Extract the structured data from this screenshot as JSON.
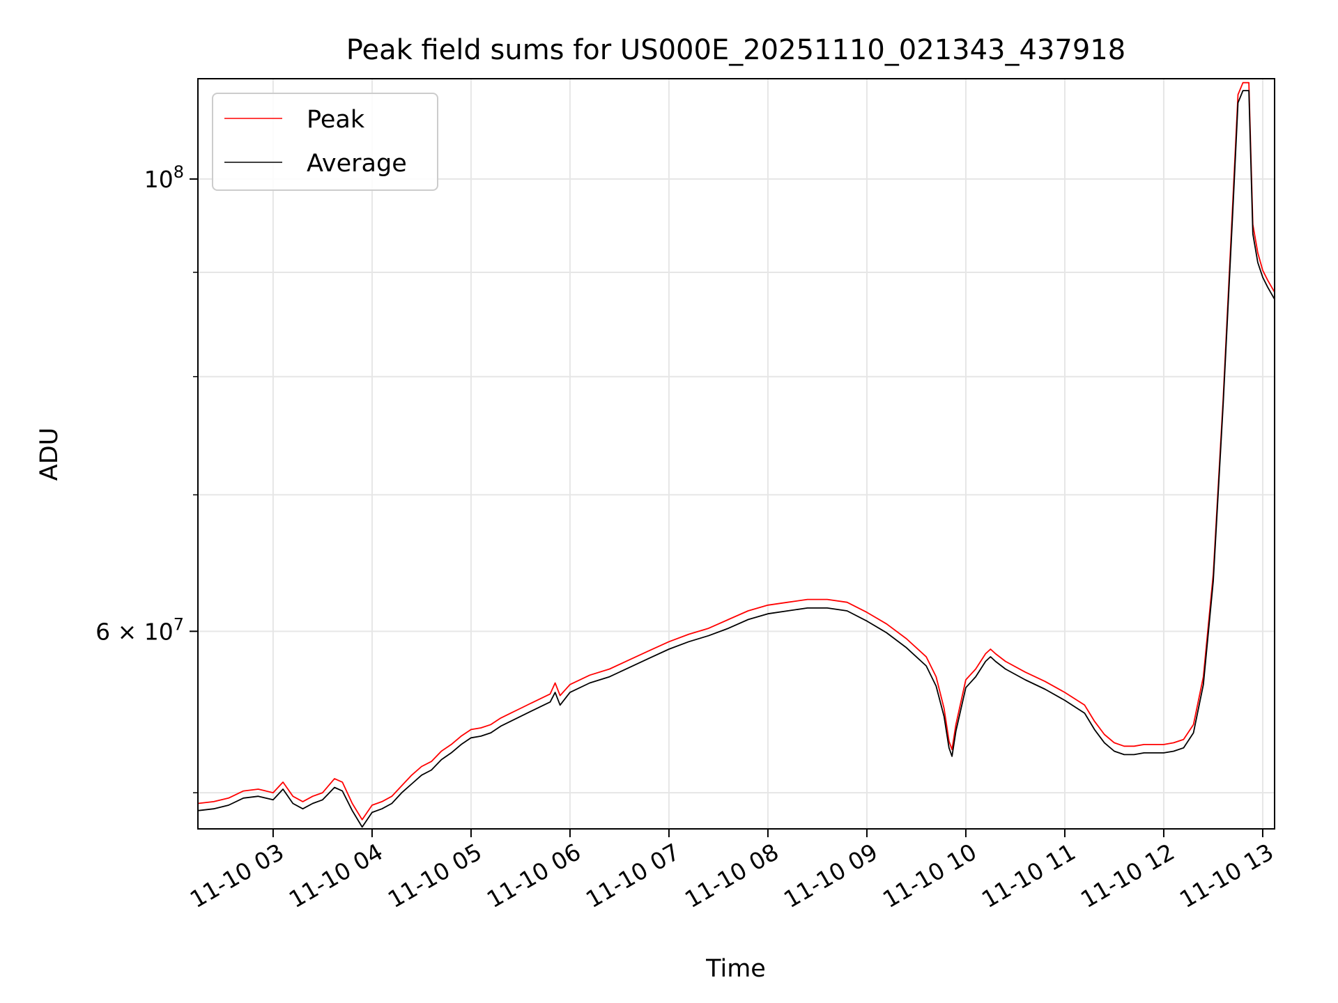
{
  "chart_data": {
    "type": "line",
    "title": "Peak field sums for US000E_20251110_021343_437918",
    "xlabel": "Time",
    "ylabel": "ADU",
    "yscale": "log",
    "xlim": [
      2.24,
      13.12
    ],
    "ylim": [
      48000000,
      112000000
    ],
    "grid": true,
    "legend_position": "top-left",
    "x_ticks": [
      3,
      4,
      5,
      6,
      7,
      8,
      9,
      10,
      11,
      12,
      13
    ],
    "x_tick_labels": [
      "11-10 03",
      "11-10 04",
      "11-10 05",
      "11-10 06",
      "11-10 07",
      "11-10 08",
      "11-10 09",
      "11-10 10",
      "11-10 11",
      "11-10 12",
      "11-10 13"
    ],
    "y_major_ticks": [
      {
        "value": 100000000,
        "base": "10",
        "exp": "8",
        "prefix": ""
      },
      {
        "value": 60000000,
        "base": "10",
        "exp": "7",
        "prefix": "6 × "
      }
    ],
    "y_minor_ticks": [
      50000000,
      70000000,
      80000000,
      90000000
    ],
    "series": [
      {
        "name": "Peak",
        "color": "#ff0000",
        "x": [
          2.24,
          2.4,
          2.55,
          2.7,
          2.85,
          3.0,
          3.1,
          3.2,
          3.3,
          3.4,
          3.5,
          3.62,
          3.7,
          3.8,
          3.9,
          4.0,
          4.1,
          4.2,
          4.3,
          4.4,
          4.5,
          4.6,
          4.7,
          4.8,
          4.9,
          5.0,
          5.1,
          5.2,
          5.3,
          5.4,
          5.5,
          5.6,
          5.7,
          5.8,
          5.85,
          5.9,
          6.0,
          6.2,
          6.4,
          6.6,
          6.8,
          7.0,
          7.2,
          7.4,
          7.6,
          7.8,
          8.0,
          8.2,
          8.4,
          8.6,
          8.8,
          9.0,
          9.2,
          9.4,
          9.6,
          9.7,
          9.78,
          9.83,
          9.86,
          9.9,
          10.0,
          10.1,
          10.2,
          10.25,
          10.3,
          10.4,
          10.6,
          10.8,
          11.0,
          11.2,
          11.3,
          11.4,
          11.5,
          11.6,
          11.7,
          11.8,
          11.9,
          12.0,
          12.1,
          12.2,
          12.3,
          12.4,
          12.5,
          12.6,
          12.7,
          12.75,
          12.8,
          12.86,
          12.9,
          12.95,
          13.0,
          13.05,
          13.12
        ],
        "y": [
          49400000,
          49500000,
          49700000,
          50100000,
          50200000,
          50000000,
          50600000,
          49800000,
          49500000,
          49800000,
          50000000,
          50800000,
          50600000,
          49400000,
          48500000,
          49300000,
          49500000,
          49800000,
          50400000,
          51000000,
          51500000,
          51800000,
          52400000,
          52800000,
          53300000,
          53700000,
          53800000,
          54000000,
          54400000,
          54700000,
          55000000,
          55300000,
          55600000,
          55900000,
          56600000,
          55800000,
          56500000,
          57100000,
          57500000,
          58100000,
          58700000,
          59300000,
          59800000,
          60200000,
          60800000,
          61400000,
          61800000,
          62000000,
          62200000,
          62200000,
          62000000,
          61300000,
          60500000,
          59500000,
          58300000,
          57000000,
          55000000,
          53000000,
          52500000,
          54000000,
          56800000,
          57500000,
          58500000,
          58800000,
          58500000,
          58000000,
          57300000,
          56700000,
          56000000,
          55200000,
          54200000,
          53400000,
          52900000,
          52700000,
          52700000,
          52800000,
          52800000,
          52800000,
          52900000,
          53100000,
          54000000,
          57000000,
          64000000,
          78000000,
          98000000,
          110000000,
          111500000,
          111500000,
          95000000,
          92000000,
          90200000,
          89200000,
          88000000
        ]
      },
      {
        "name": "Average",
        "color": "#000000",
        "x": [
          2.24,
          2.4,
          2.55,
          2.7,
          2.85,
          3.0,
          3.1,
          3.2,
          3.3,
          3.4,
          3.5,
          3.62,
          3.7,
          3.8,
          3.9,
          4.0,
          4.1,
          4.2,
          4.3,
          4.4,
          4.5,
          4.6,
          4.7,
          4.8,
          4.9,
          5.0,
          5.1,
          5.2,
          5.3,
          5.4,
          5.5,
          5.6,
          5.7,
          5.8,
          5.85,
          5.9,
          6.0,
          6.2,
          6.4,
          6.6,
          6.8,
          7.0,
          7.2,
          7.4,
          7.6,
          7.8,
          8.0,
          8.2,
          8.4,
          8.6,
          8.8,
          9.0,
          9.2,
          9.4,
          9.6,
          9.7,
          9.78,
          9.83,
          9.86,
          9.9,
          10.0,
          10.1,
          10.2,
          10.25,
          10.3,
          10.4,
          10.6,
          10.8,
          11.0,
          11.2,
          11.3,
          11.4,
          11.5,
          11.6,
          11.7,
          11.8,
          11.9,
          12.0,
          12.1,
          12.2,
          12.3,
          12.4,
          12.5,
          12.6,
          12.7,
          12.75,
          12.8,
          12.86,
          12.9,
          12.95,
          13.0,
          13.05,
          13.12
        ],
        "y": [
          49000000,
          49100000,
          49300000,
          49700000,
          49800000,
          49600000,
          50200000,
          49400000,
          49100000,
          49400000,
          49600000,
          50300000,
          50100000,
          49000000,
          48100000,
          48900000,
          49100000,
          49400000,
          50000000,
          50500000,
          51000000,
          51300000,
          51900000,
          52300000,
          52800000,
          53200000,
          53300000,
          53500000,
          53900000,
          54200000,
          54500000,
          54800000,
          55100000,
          55400000,
          56000000,
          55200000,
          56000000,
          56600000,
          57000000,
          57600000,
          58200000,
          58800000,
          59300000,
          59700000,
          60200000,
          60800000,
          61200000,
          61400000,
          61600000,
          61600000,
          61400000,
          60700000,
          59900000,
          58900000,
          57700000,
          56400000,
          54500000,
          52600000,
          52100000,
          53600000,
          56300000,
          57000000,
          58000000,
          58300000,
          58000000,
          57500000,
          56800000,
          56200000,
          55500000,
          54700000,
          53700000,
          52900000,
          52400000,
          52200000,
          52200000,
          52300000,
          52300000,
          52300000,
          52400000,
          52600000,
          53500000,
          56500000,
          63500000,
          77500000,
          97000000,
          109000000,
          110500000,
          110500000,
          94000000,
          91000000,
          89500000,
          88500000,
          87300000
        ]
      }
    ]
  }
}
